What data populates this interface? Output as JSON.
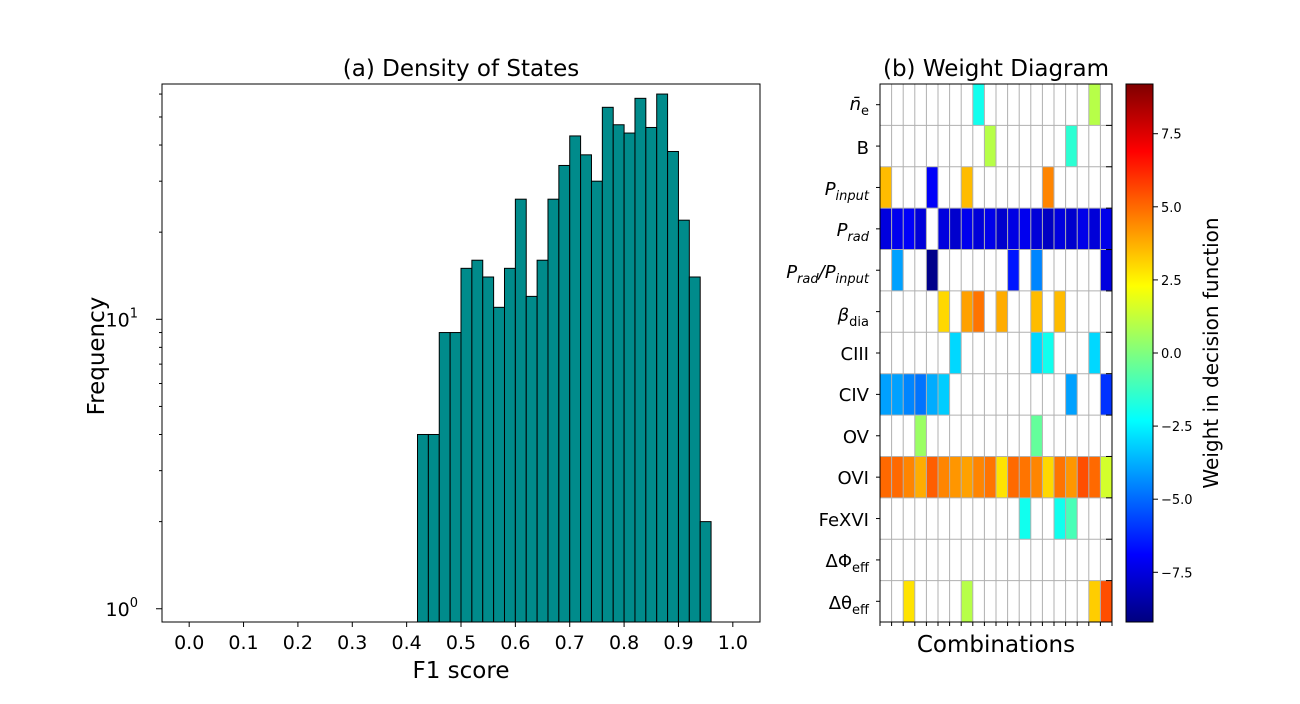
{
  "chart_data": [
    {
      "type": "bar",
      "title": "(a) Density of States",
      "xlabel": "F1 score",
      "ylabel": "Frequency",
      "yscale": "log",
      "xlim": [
        -0.05,
        1.05
      ],
      "ylim": [
        0.9,
        65
      ],
      "bin_width": 0.02,
      "x_ticks": [
        "0.0",
        "0.1",
        "0.2",
        "0.3",
        "0.4",
        "0.5",
        "0.6",
        "0.7",
        "0.8",
        "0.9",
        "1.0"
      ],
      "y_ticks": [
        {
          "base": "10",
          "exp": "0",
          "value": 1
        },
        {
          "base": "10",
          "exp": "1",
          "value": 10
        }
      ],
      "bar_color": "#008b8b",
      "bins": [
        {
          "x": 0.42,
          "value": 4
        },
        {
          "x": 0.44,
          "value": 4
        },
        {
          "x": 0.46,
          "value": 9
        },
        {
          "x": 0.48,
          "value": 9
        },
        {
          "x": 0.5,
          "value": 15
        },
        {
          "x": 0.52,
          "value": 16
        },
        {
          "x": 0.54,
          "value": 14
        },
        {
          "x": 0.56,
          "value": 11
        },
        {
          "x": 0.58,
          "value": 15
        },
        {
          "x": 0.6,
          "value": 26
        },
        {
          "x": 0.62,
          "value": 12
        },
        {
          "x": 0.64,
          "value": 16
        },
        {
          "x": 0.66,
          "value": 26
        },
        {
          "x": 0.68,
          "value": 34
        },
        {
          "x": 0.7,
          "value": 43
        },
        {
          "x": 0.72,
          "value": 37
        },
        {
          "x": 0.74,
          "value": 30
        },
        {
          "x": 0.76,
          "value": 54
        },
        {
          "x": 0.78,
          "value": 47
        },
        {
          "x": 0.8,
          "value": 44
        },
        {
          "x": 0.82,
          "value": 58
        },
        {
          "x": 0.84,
          "value": 46
        },
        {
          "x": 0.86,
          "value": 60
        },
        {
          "x": 0.88,
          "value": 38
        },
        {
          "x": 0.9,
          "value": 22
        },
        {
          "x": 0.92,
          "value": 14
        },
        {
          "x": 0.94,
          "value": 2
        }
      ]
    },
    {
      "type": "heatmap",
      "title": "(b) Weight Diagram",
      "xlabel": "Combinations",
      "n_columns": 20,
      "rows": [
        {
          "label": "n̄",
          "sub": "e",
          "bar": true
        },
        {
          "label": "B"
        },
        {
          "label": "P",
          "sub": "input",
          "italic": true
        },
        {
          "label": "P",
          "sub": "rad",
          "italic": true
        },
        {
          "label": "P",
          "sub": "rad",
          "label2": "/P",
          "sub2": "input",
          "italic": true
        },
        {
          "label": "β",
          "sub": "dia",
          "italic_main": true
        },
        {
          "label": "CIII"
        },
        {
          "label": "CIV"
        },
        {
          "label": "OV"
        },
        {
          "label": "OVI"
        },
        {
          "label": "FeXVI"
        },
        {
          "label": "ΔΦ",
          "sub": "eff"
        },
        {
          "label": "Δθ",
          "sub": "eff"
        }
      ],
      "cells": [
        [
          null,
          null,
          null,
          null,
          null,
          null,
          null,
          null,
          -2.0,
          null,
          null,
          null,
          null,
          null,
          null,
          null,
          null,
          null,
          1.0,
          null
        ],
        [
          null,
          null,
          null,
          null,
          null,
          null,
          null,
          null,
          null,
          1.0,
          null,
          null,
          null,
          null,
          null,
          null,
          -1.5,
          null,
          null,
          null
        ],
        [
          3.5,
          null,
          null,
          null,
          -7.0,
          null,
          null,
          3.5,
          null,
          null,
          null,
          null,
          null,
          null,
          4.5,
          null,
          null,
          null,
          null,
          null
        ],
        [
          -7.5,
          -7.2,
          -7.0,
          -7.6,
          null,
          -7.5,
          -7.8,
          -7.2,
          -7.6,
          -7.3,
          -7.8,
          -7.4,
          -7.2,
          -7.6,
          -8.0,
          -7.5,
          -7.8,
          -7.3,
          -7.6,
          -7.3
        ],
        [
          null,
          -4.0,
          null,
          null,
          -9.0,
          null,
          null,
          null,
          null,
          null,
          null,
          -6.5,
          null,
          -4.5,
          null,
          null,
          null,
          null,
          null,
          -7.5
        ],
        [
          null,
          null,
          null,
          null,
          null,
          3.0,
          null,
          4.0,
          4.8,
          null,
          3.8,
          null,
          null,
          3.5,
          null,
          3.5,
          null,
          null,
          null,
          null
        ],
        [
          null,
          null,
          null,
          null,
          null,
          null,
          -3.0,
          null,
          null,
          null,
          null,
          null,
          null,
          -3.0,
          -2.0,
          null,
          null,
          null,
          -3.0,
          null
        ],
        [
          -4.0,
          -4.0,
          -4.5,
          -4.8,
          -3.8,
          -3.2,
          null,
          null,
          null,
          null,
          null,
          null,
          null,
          null,
          null,
          null,
          -4.0,
          null,
          null,
          -6.0
        ],
        [
          null,
          null,
          null,
          0.5,
          null,
          null,
          null,
          null,
          null,
          null,
          null,
          null,
          null,
          -0.5,
          null,
          null,
          null,
          null,
          null,
          null
        ],
        [
          5.0,
          5.0,
          4.5,
          3.8,
          5.2,
          4.5,
          4.2,
          4.0,
          4.5,
          4.8,
          2.8,
          5.0,
          4.8,
          4.5,
          3.0,
          4.8,
          4.2,
          5.5,
          5.0,
          1.5
        ],
        [
          null,
          null,
          null,
          null,
          null,
          null,
          null,
          null,
          null,
          null,
          null,
          null,
          -2.0,
          null,
          null,
          -2.0,
          -1.0,
          null,
          null,
          null
        ],
        [
          null,
          null,
          null,
          null,
          null,
          null,
          null,
          null,
          null,
          null,
          null,
          null,
          null,
          null,
          null,
          null,
          null,
          null,
          null,
          null
        ],
        [
          null,
          null,
          2.8,
          null,
          null,
          null,
          null,
          1.0,
          null,
          null,
          null,
          null,
          null,
          null,
          null,
          null,
          null,
          null,
          3.2,
          5.5
        ]
      ],
      "colorbar": {
        "label": "Weight in decision function",
        "colormap": "jet",
        "range": [
          -9.2,
          9.2
        ],
        "ticks": [
          "−7.5",
          "−5.0",
          "−2.5",
          "0.0",
          "2.5",
          "5.0",
          "7.5"
        ],
        "tick_values": [
          -7.5,
          -5.0,
          -2.5,
          0.0,
          2.5,
          5.0,
          7.5
        ]
      }
    }
  ]
}
